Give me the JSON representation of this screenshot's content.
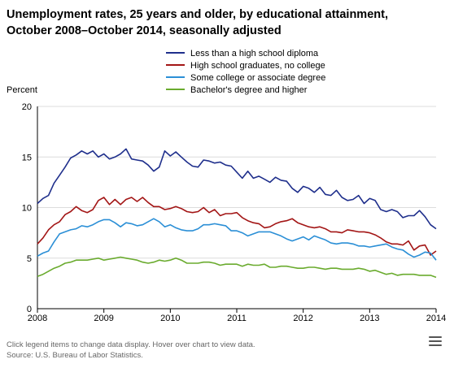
{
  "chart_data": {
    "type": "line",
    "title": "Unemployment rates, 25 years and older, by educational attainment,",
    "subtitle": "October 2008–October 2014, seasonally adjusted",
    "ylabel": "Percent",
    "xlabel": "",
    "ylim": [
      0,
      20
    ],
    "yticks": [
      "0",
      "5",
      "10",
      "15",
      "20"
    ],
    "xlim": [
      2008.0,
      2014.0
    ],
    "xticks": [
      {
        "label": "2008",
        "value": 2008
      },
      {
        "label": "2009",
        "value": 2009
      },
      {
        "label": "2010",
        "value": 2010
      },
      {
        "label": "2011",
        "value": 2011
      },
      {
        "label": "2012",
        "value": 2012
      },
      {
        "label": "2013",
        "value": 2013
      },
      {
        "label": "2014",
        "value": 2014
      }
    ],
    "grid": "horizontal",
    "legend_position": "top-right",
    "x": [
      2008.0,
      2008.0833,
      2008.1667,
      2008.25,
      2008.3333,
      2008.4167,
      2008.5,
      2008.5833,
      2008.6667,
      2008.75,
      2008.8333,
      2008.9167,
      2009.0,
      2009.0833,
      2009.1667,
      2009.25,
      2009.3333,
      2009.4167,
      2009.5,
      2009.5833,
      2009.6667,
      2009.75,
      2009.8333,
      2009.9167,
      2010.0,
      2010.0833,
      2010.1667,
      2010.25,
      2010.3333,
      2010.4167,
      2010.5,
      2010.5833,
      2010.6667,
      2010.75,
      2010.8333,
      2010.9167,
      2011.0,
      2011.0833,
      2011.1667,
      2011.25,
      2011.3333,
      2011.4167,
      2011.5,
      2011.5833,
      2011.6667,
      2011.75,
      2011.8333,
      2011.9167,
      2012.0,
      2012.0833,
      2012.1667,
      2012.25,
      2012.3333,
      2012.4167,
      2012.5,
      2012.5833,
      2012.6667,
      2012.75,
      2012.8333,
      2012.9167,
      2013.0,
      2013.0833,
      2013.1667,
      2013.25,
      2013.3333,
      2013.4167,
      2013.5,
      2013.5833,
      2013.6667,
      2013.75,
      2013.8333,
      2013.9167,
      2014.0
    ],
    "series": [
      {
        "name": "Less than a high school diploma",
        "color": "#1f2f8c",
        "values": [
          10.4,
          10.9,
          11.2,
          12.4,
          13.2,
          14.0,
          14.9,
          15.2,
          15.6,
          15.3,
          15.6,
          15.0,
          15.3,
          14.8,
          15.0,
          15.3,
          15.8,
          14.8,
          14.7,
          14.6,
          14.2,
          13.6,
          14.0,
          15.6,
          15.1,
          15.5,
          15.0,
          14.5,
          14.1,
          14.0,
          14.7,
          14.6,
          14.4,
          14.5,
          14.2,
          14.1,
          13.5,
          12.9,
          13.6,
          12.9,
          13.1,
          12.8,
          12.5,
          13.0,
          12.7,
          12.6,
          11.9,
          11.5,
          12.1,
          11.9,
          11.5,
          12.0,
          11.3,
          11.2,
          11.7,
          11.0,
          10.7,
          10.8,
          11.2,
          10.4,
          10.9,
          10.7,
          9.8,
          9.6,
          9.8,
          9.6,
          9.0,
          9.2,
          9.2,
          9.7,
          9.1,
          8.3,
          7.9
        ]
      },
      {
        "name": "High school graduates, no college",
        "color": "#a31616",
        "values": [
          6.4,
          7.0,
          7.8,
          8.3,
          8.6,
          9.3,
          9.6,
          10.1,
          9.7,
          9.5,
          9.8,
          10.7,
          11.0,
          10.3,
          10.8,
          10.3,
          10.8,
          11.0,
          10.6,
          11.0,
          10.5,
          10.1,
          10.1,
          9.8,
          9.9,
          10.1,
          9.9,
          9.6,
          9.5,
          9.6,
          10.0,
          9.5,
          9.8,
          9.2,
          9.4,
          9.4,
          9.5,
          9.0,
          8.7,
          8.5,
          8.4,
          8.0,
          8.1,
          8.4,
          8.6,
          8.7,
          8.9,
          8.5,
          8.3,
          8.1,
          8.0,
          8.1,
          7.9,
          7.6,
          7.6,
          7.5,
          7.8,
          7.7,
          7.6,
          7.6,
          7.5,
          7.3,
          7.0,
          6.6,
          6.4,
          6.4,
          6.3,
          6.7,
          5.8,
          6.2,
          6.3,
          5.3,
          5.7
        ]
      },
      {
        "name": "Some college or associate degree",
        "color": "#2b8fd6",
        "values": [
          5.2,
          5.5,
          5.7,
          6.6,
          7.4,
          7.6,
          7.8,
          7.9,
          8.2,
          8.1,
          8.3,
          8.6,
          8.8,
          8.8,
          8.5,
          8.1,
          8.5,
          8.4,
          8.2,
          8.3,
          8.6,
          8.9,
          8.6,
          8.1,
          8.3,
          8.0,
          7.8,
          7.7,
          7.7,
          7.9,
          8.3,
          8.3,
          8.4,
          8.3,
          8.2,
          7.7,
          7.7,
          7.5,
          7.2,
          7.4,
          7.6,
          7.6,
          7.6,
          7.4,
          7.2,
          6.9,
          6.7,
          6.9,
          7.1,
          6.8,
          7.2,
          7.0,
          6.8,
          6.5,
          6.4,
          6.5,
          6.5,
          6.4,
          6.2,
          6.2,
          6.1,
          6.2,
          6.3,
          6.4,
          6.1,
          5.9,
          5.8,
          5.4,
          5.1,
          5.3,
          5.6,
          5.5,
          4.8
        ]
      },
      {
        "name": "Bachelor's degree and higher",
        "color": "#6aab2e",
        "values": [
          3.2,
          3.4,
          3.7,
          4.0,
          4.2,
          4.5,
          4.6,
          4.8,
          4.8,
          4.8,
          4.9,
          5.0,
          4.8,
          4.9,
          5.0,
          5.1,
          5.0,
          4.9,
          4.8,
          4.6,
          4.5,
          4.6,
          4.8,
          4.7,
          4.8,
          5.0,
          4.8,
          4.5,
          4.5,
          4.5,
          4.6,
          4.6,
          4.5,
          4.3,
          4.4,
          4.4,
          4.4,
          4.2,
          4.4,
          4.3,
          4.3,
          4.4,
          4.1,
          4.1,
          4.2,
          4.2,
          4.1,
          4.0,
          4.0,
          4.1,
          4.1,
          4.0,
          3.9,
          4.0,
          4.0,
          3.9,
          3.9,
          3.9,
          4.0,
          3.9,
          3.7,
          3.8,
          3.6,
          3.4,
          3.5,
          3.3,
          3.4,
          3.4,
          3.4,
          3.3,
          3.3,
          3.3,
          3.1
        ]
      }
    ]
  },
  "footer": {
    "hint": "Click legend items to change data display. Hover over chart to view data.",
    "source": "Source: U.S. Bureau of Labor Statistics."
  },
  "menu": {
    "icon": "hamburger-menu-icon"
  }
}
